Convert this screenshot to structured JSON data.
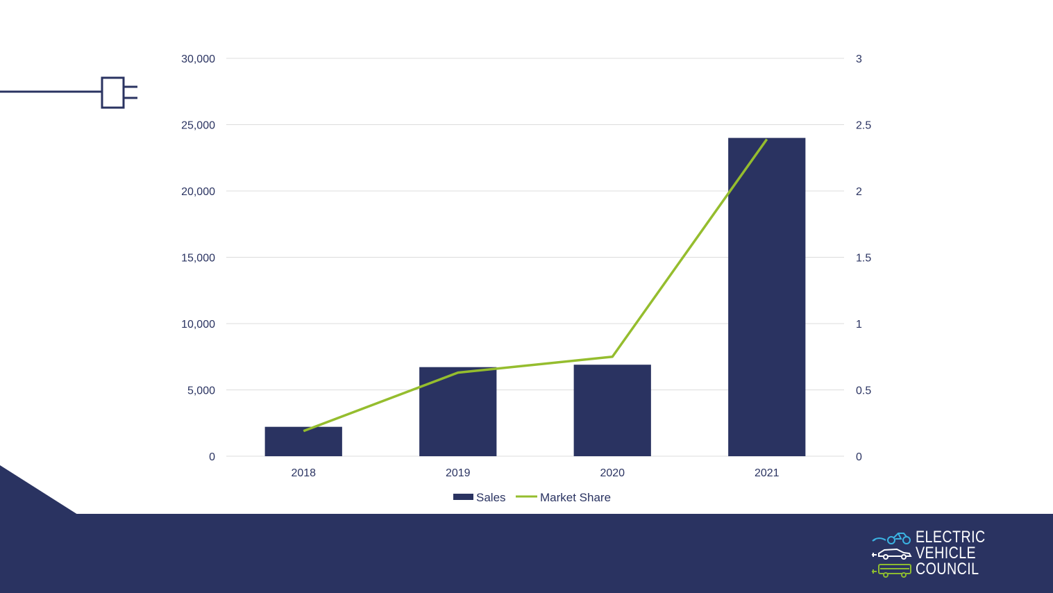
{
  "colors": {
    "navy": "#2a3361",
    "green": "#95bd2e",
    "grid": "#dcdcdc",
    "logo_blue": "#3bb3e2",
    "logo_green": "#8dbb31",
    "logo_white": "#ffffff"
  },
  "logo": {
    "line1": "ELECTRIC",
    "line2": "VEHICLE",
    "line3": "COUNCIL",
    "icons": [
      "motorbike-icon",
      "car-icon",
      "bus-icon"
    ]
  },
  "decor": {
    "plug_icon": "plug-icon"
  },
  "chart_data": {
    "type": "bar",
    "categories": [
      "2018",
      "2019",
      "2020",
      "2021"
    ],
    "series": [
      {
        "name": "Sales",
        "type": "bar",
        "axis": "left",
        "values": [
          2216,
          6718,
          6900,
          24000
        ]
      },
      {
        "name": "Market Share",
        "type": "line",
        "axis": "right",
        "values": [
          0.19,
          0.63,
          0.75,
          2.39
        ]
      }
    ],
    "y_left": {
      "ylim": [
        0,
        30000
      ],
      "ticks": [
        "0",
        "5,000",
        "10,000",
        "15,000",
        "20,000",
        "25,000",
        "30,000"
      ]
    },
    "y_right": {
      "ylim": [
        0,
        3
      ],
      "ticks": [
        "0",
        "0.5",
        "1",
        "1.5",
        "2",
        "2.5",
        "3"
      ]
    },
    "grid": true,
    "legend": "bottom-center"
  }
}
